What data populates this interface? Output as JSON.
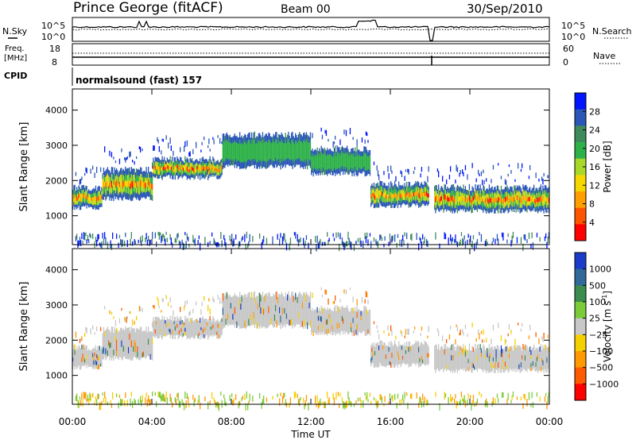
{
  "header": {
    "station": "Prince George (fitACF)",
    "beam": "Beam 00",
    "date": "30/Sep/2010"
  },
  "top_panels": {
    "nsky_label": "N.Sky",
    "nsky_ticks": [
      "10^5",
      "10^0"
    ],
    "nsearch_label": "N.Search",
    "nsearch_ticks": [
      "10^5",
      "10^0"
    ],
    "freq_label_line1": "Freq.",
    "freq_label_line2": "[MHz]",
    "freq_ticks": [
      "18",
      "8"
    ],
    "nave_label": "Nave",
    "nave_ticks": [
      "60",
      "0"
    ],
    "cpid_label": "CPID",
    "cpid_text": "normalsound (fast) 157"
  },
  "chart_data": [
    {
      "type": "heatmap",
      "name": "power-panel",
      "ylabel": "Slant Range [km]",
      "yticks": [
        "4000",
        "3000",
        "2000",
        "1000"
      ],
      "ylim": [
        180,
        4600
      ],
      "xlim": [
        0,
        24
      ],
      "colorbar": {
        "label": "Power [dB]",
        "ticks": [
          "28",
          "24",
          "20",
          "16",
          "12",
          "8",
          "4"
        ],
        "colors": [
          "#0014ff",
          "#2a56b8",
          "#3f8a5a",
          "#2fb14a",
          "#a8d82a",
          "#f5d800",
          "#ffa000",
          "#ff5500",
          "#ff0000"
        ]
      },
      "echo_bands": [
        {
          "t_start": 0.0,
          "t_end": 1.5,
          "r_low": 1250,
          "r_high": 1800
        },
        {
          "t_start": 1.5,
          "t_end": 4.0,
          "r_low": 1500,
          "r_high": 2300
        },
        {
          "t_start": 4.0,
          "t_end": 7.5,
          "r_low": 2100,
          "r_high": 2600
        },
        {
          "t_start": 7.5,
          "t_end": 12.0,
          "r_low": 2400,
          "r_high": 3300
        },
        {
          "t_start": 12.0,
          "t_end": 15.0,
          "r_low": 2200,
          "r_high": 2900
        },
        {
          "t_start": 15.0,
          "t_end": 18.0,
          "r_low": 1300,
          "r_high": 1900
        },
        {
          "t_start": 18.2,
          "t_end": 24.0,
          "r_low": 1150,
          "r_high": 1800
        }
      ]
    },
    {
      "type": "heatmap",
      "name": "velocity-panel",
      "ylabel": "Slant Range [km]",
      "yticks": [
        "4000",
        "3000",
        "2000",
        "1000"
      ],
      "ylim": [
        180,
        4600
      ],
      "xlim": [
        0,
        24
      ],
      "xticks": [
        "00:00",
        "04:00",
        "08:00",
        "12:00",
        "16:00",
        "20:00",
        "00:00"
      ],
      "xlabel": "Time UT",
      "colorbar": {
        "label": "Velocity [m s",
        "label_sup": "-1",
        "label_end": "]",
        "ticks": [
          "1000",
          "500",
          "100",
          "25",
          "−25",
          "−100",
          "−500",
          "−1000"
        ],
        "colors": [
          "#1a3cc8",
          "#2f6a9a",
          "#3c8c50",
          "#7ccc3a",
          "#c8c8c8",
          "#f5d000",
          "#ff9a00",
          "#ff5a00",
          "#ff0000"
        ]
      }
    }
  ]
}
